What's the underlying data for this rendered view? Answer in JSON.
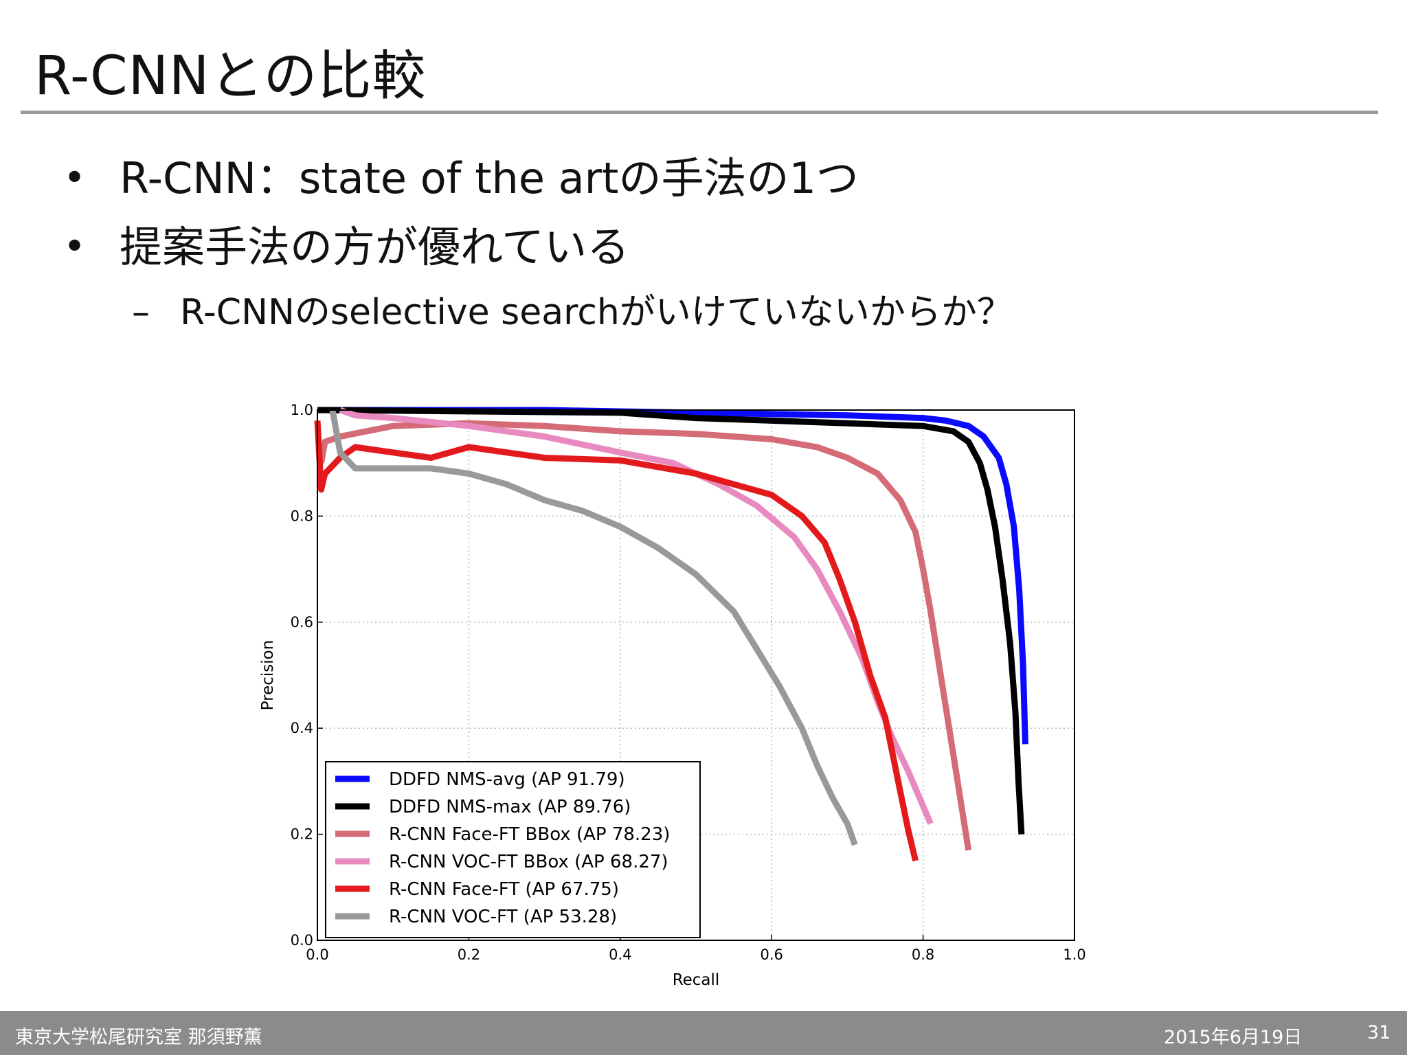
{
  "slide": {
    "title": "R-CNNとの比較",
    "bullets": [
      "R-CNN：state of the artの手法の1つ",
      "提案手法の方が優れている"
    ],
    "bullet_symbol": "•",
    "sub_bullet_symbol": "–",
    "sub_bullets": [
      "R-CNNのselective searchがいけていないからか？"
    ]
  },
  "footer": {
    "affiliation": "東京大学松尾研究室 那須野薫",
    "date": "2015年6月19日",
    "page_number": "31"
  },
  "chart_data": {
    "type": "line",
    "xlabel": "Recall",
    "ylabel": "Precision",
    "xlim": [
      0.0,
      1.0
    ],
    "ylim": [
      0.0,
      1.0
    ],
    "xticks": [
      "0.0",
      "0.2",
      "0.4",
      "0.6",
      "0.8",
      "1.0"
    ],
    "yticks": [
      "0.0",
      "0.2",
      "0.4",
      "0.6",
      "0.8",
      "1.0"
    ],
    "grid": true,
    "legend_position": "lower-left",
    "series": [
      {
        "name": "DDFD NMS-avg (AP 91.79)",
        "color": "#0a0aff",
        "points": [
          [
            0.0,
            1.0
          ],
          [
            0.3,
            1.0
          ],
          [
            0.5,
            0.995
          ],
          [
            0.7,
            0.99
          ],
          [
            0.8,
            0.985
          ],
          [
            0.83,
            0.98
          ],
          [
            0.86,
            0.97
          ],
          [
            0.88,
            0.95
          ],
          [
            0.9,
            0.91
          ],
          [
            0.91,
            0.86
          ],
          [
            0.92,
            0.78
          ],
          [
            0.927,
            0.66
          ],
          [
            0.932,
            0.52
          ],
          [
            0.935,
            0.37
          ]
        ]
      },
      {
        "name": "DDFD NMS-max (AP 89.76)",
        "color": "#000000",
        "points": [
          [
            0.0,
            1.0
          ],
          [
            0.4,
            0.995
          ],
          [
            0.5,
            0.985
          ],
          [
            0.6,
            0.98
          ],
          [
            0.7,
            0.975
          ],
          [
            0.8,
            0.97
          ],
          [
            0.84,
            0.96
          ],
          [
            0.86,
            0.94
          ],
          [
            0.875,
            0.9
          ],
          [
            0.885,
            0.85
          ],
          [
            0.895,
            0.78
          ],
          [
            0.905,
            0.68
          ],
          [
            0.915,
            0.56
          ],
          [
            0.922,
            0.43
          ],
          [
            0.926,
            0.3
          ],
          [
            0.93,
            0.2
          ]
        ]
      },
      {
        "name": "R-CNN Face-FT BBox (AP 78.23)",
        "color": "#d46b76",
        "points": [
          [
            0.005,
            0.9
          ],
          [
            0.01,
            0.94
          ],
          [
            0.03,
            0.95
          ],
          [
            0.1,
            0.97
          ],
          [
            0.2,
            0.975
          ],
          [
            0.3,
            0.97
          ],
          [
            0.4,
            0.96
          ],
          [
            0.5,
            0.955
          ],
          [
            0.6,
            0.945
          ],
          [
            0.66,
            0.93
          ],
          [
            0.7,
            0.91
          ],
          [
            0.74,
            0.88
          ],
          [
            0.77,
            0.83
          ],
          [
            0.79,
            0.77
          ],
          [
            0.8,
            0.7
          ],
          [
            0.81,
            0.62
          ],
          [
            0.82,
            0.53
          ],
          [
            0.83,
            0.44
          ],
          [
            0.84,
            0.35
          ],
          [
            0.85,
            0.26
          ],
          [
            0.86,
            0.17
          ]
        ]
      },
      {
        "name": "R-CNN VOC-FT BBox (AP 68.27)",
        "color": "#e88ac0",
        "points": [
          [
            0.03,
            1.0
          ],
          [
            0.05,
            0.99
          ],
          [
            0.1,
            0.985
          ],
          [
            0.2,
            0.97
          ],
          [
            0.3,
            0.95
          ],
          [
            0.4,
            0.92
          ],
          [
            0.47,
            0.9
          ],
          [
            0.53,
            0.86
          ],
          [
            0.58,
            0.82
          ],
          [
            0.63,
            0.76
          ],
          [
            0.66,
            0.7
          ],
          [
            0.69,
            0.62
          ],
          [
            0.72,
            0.53
          ],
          [
            0.74,
            0.45
          ],
          [
            0.76,
            0.38
          ],
          [
            0.78,
            0.32
          ],
          [
            0.795,
            0.27
          ],
          [
            0.81,
            0.22
          ]
        ]
      },
      {
        "name": "R-CNN Face-FT (AP 67.75)",
        "color": "#e31a1c",
        "points": [
          [
            0.0,
            0.98
          ],
          [
            0.005,
            0.85
          ],
          [
            0.01,
            0.88
          ],
          [
            0.03,
            0.91
          ],
          [
            0.05,
            0.93
          ],
          [
            0.1,
            0.92
          ],
          [
            0.15,
            0.91
          ],
          [
            0.2,
            0.93
          ],
          [
            0.3,
            0.91
          ],
          [
            0.4,
            0.905
          ],
          [
            0.5,
            0.88
          ],
          [
            0.55,
            0.86
          ],
          [
            0.6,
            0.84
          ],
          [
            0.64,
            0.8
          ],
          [
            0.67,
            0.75
          ],
          [
            0.69,
            0.68
          ],
          [
            0.71,
            0.6
          ],
          [
            0.73,
            0.5
          ],
          [
            0.75,
            0.42
          ],
          [
            0.76,
            0.35
          ],
          [
            0.77,
            0.28
          ],
          [
            0.78,
            0.21
          ],
          [
            0.79,
            0.15
          ]
        ]
      },
      {
        "name": "R-CNN VOC-FT (AP 53.28)",
        "color": "#999999",
        "points": [
          [
            0.02,
            1.0
          ],
          [
            0.03,
            0.92
          ],
          [
            0.05,
            0.89
          ],
          [
            0.1,
            0.89
          ],
          [
            0.15,
            0.89
          ],
          [
            0.2,
            0.88
          ],
          [
            0.25,
            0.86
          ],
          [
            0.3,
            0.83
          ],
          [
            0.35,
            0.81
          ],
          [
            0.4,
            0.78
          ],
          [
            0.45,
            0.74
          ],
          [
            0.5,
            0.69
          ],
          [
            0.55,
            0.62
          ],
          [
            0.58,
            0.55
          ],
          [
            0.61,
            0.48
          ],
          [
            0.64,
            0.4
          ],
          [
            0.66,
            0.33
          ],
          [
            0.68,
            0.27
          ],
          [
            0.7,
            0.22
          ],
          [
            0.71,
            0.18
          ]
        ]
      }
    ]
  }
}
